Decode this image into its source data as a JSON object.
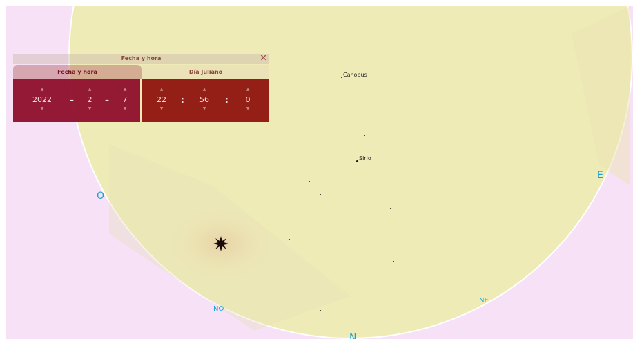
{
  "date_panel": {
    "title": "Fecha y hora",
    "close_glyph": "✕",
    "tabs": [
      {
        "label": "Fecha y hora",
        "active": true
      },
      {
        "label": "Día Juliano",
        "active": false
      }
    ],
    "date": {
      "year": "2022",
      "month": "2",
      "day": "7",
      "separator": "–"
    },
    "time": {
      "hour": "22",
      "minute": "56",
      "second": "0",
      "separator": ":"
    },
    "spinner_up": "▲",
    "spinner_down": "▼"
  },
  "sky": {
    "stars": [
      {
        "name": "Canopus"
      },
      {
        "name": "Sirio"
      }
    ],
    "cardinals": {
      "west": "O",
      "northwest": "NO",
      "north": "N",
      "northeast": "NE",
      "east": "E"
    }
  },
  "colors": {
    "dome": "#efebb6",
    "background": "#f6e1f7",
    "horizon_line": "#ffffff",
    "cardinal_text": "#1aa0d6",
    "panel_date_field": "#8c0a28",
    "panel_time_field": "#8c0f0a"
  },
  "icons": {
    "sun": "sun-icon",
    "close": "close-icon"
  }
}
